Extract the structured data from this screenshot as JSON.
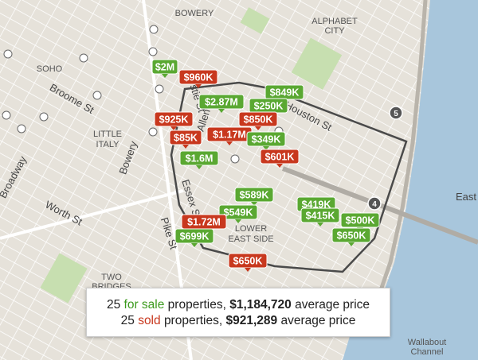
{
  "map_labels": [
    "BOWERY",
    "SOHO",
    "ALPHABET",
    "CITY",
    "LITTLE",
    "ITALY",
    "Broome St",
    "Houston St",
    "Broadway",
    "Worth St",
    "TWO",
    "BRIDGES",
    "LOWER",
    "EAST SIDE",
    "East",
    "Wallabout",
    "Channel",
    "Bowery",
    "Pike St",
    "Essex St",
    "Allen St",
    "stie St"
  ],
  "route_shields": [
    "5",
    "4"
  ],
  "markers": [
    {
      "label": "$2M",
      "color": "#5aa832"
    },
    {
      "label": "$960K",
      "color": "#c8381e"
    },
    {
      "label": "$2.87M",
      "color": "#5aa832"
    },
    {
      "label": "$849K",
      "color": "#5aa832"
    },
    {
      "label": "$250K",
      "color": "#5aa832"
    },
    {
      "label": "$925K",
      "color": "#c8381e"
    },
    {
      "label": "$850K",
      "color": "#c8381e"
    },
    {
      "label": "$85K",
      "color": "#c8381e"
    },
    {
      "label": "$1.17M",
      "color": "#c8381e"
    },
    {
      "label": "$349K",
      "color": "#5aa832"
    },
    {
      "label": "$1.6M",
      "color": "#5aa832"
    },
    {
      "label": "$601K",
      "color": "#c8381e"
    },
    {
      "label": "$589K",
      "color": "#5aa832"
    },
    {
      "label": "$549K",
      "color": "#5aa832"
    },
    {
      "label": "$419K",
      "color": "#5aa832"
    },
    {
      "label": "$415K",
      "color": "#5aa832"
    },
    {
      "label": "$500K",
      "color": "#5aa832"
    },
    {
      "label": "$650K",
      "color": "#5aa832"
    },
    {
      "label": "$1.72M",
      "color": "#c8381e"
    },
    {
      "label": "$699K",
      "color": "#5aa832"
    },
    {
      "label": "$650K",
      "color": "#c8381e"
    }
  ],
  "summary": {
    "lines": [
      {
        "count": "25",
        "status": "for sale",
        "middle": "properties,",
        "price": "$1,184,720",
        "suffix": "average price",
        "color": "#3c9a1e"
      },
      {
        "count": "25",
        "status": "sold",
        "middle": "properties,",
        "price": "$921,289",
        "suffix": "average price",
        "color": "#c8381e"
      }
    ]
  }
}
